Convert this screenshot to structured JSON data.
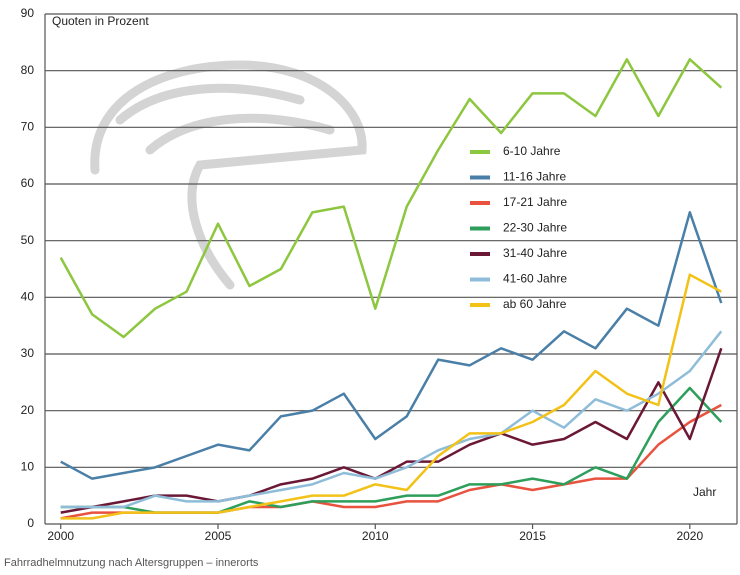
{
  "chart_data": {
    "type": "line",
    "annotation": "Quoten in Prozent",
    "x_label": "Jahr",
    "caption": "Fahrradhelmnutzung nach Altersgruppen – innerorts",
    "x": [
      2000,
      2001,
      2002,
      2003,
      2004,
      2005,
      2006,
      2007,
      2008,
      2009,
      2010,
      2011,
      2012,
      2013,
      2014,
      2015,
      2016,
      2017,
      2018,
      2019,
      2020,
      2021
    ],
    "series": [
      {
        "name": "6-10 Jahre",
        "color": "#8dc63f",
        "values": [
          47,
          37,
          33,
          38,
          41,
          53,
          42,
          45,
          55,
          56,
          38,
          56,
          66,
          75,
          69,
          76,
          76,
          72,
          82,
          72,
          82,
          77
        ]
      },
      {
        "name": "11-16 Jahre",
        "color": "#4a7fa7",
        "values": [
          11,
          8,
          9,
          10,
          12,
          14,
          13,
          19,
          20,
          23,
          15,
          19,
          29,
          28,
          31,
          29,
          34,
          31,
          38,
          35,
          55,
          39
        ]
      },
      {
        "name": "17-21 Jahre",
        "color": "#e8523f",
        "values": [
          1,
          2,
          2,
          2,
          2,
          2,
          3,
          3,
          4,
          3,
          3,
          4,
          4,
          6,
          7,
          6,
          7,
          8,
          8,
          14,
          18,
          21
        ]
      },
      {
        "name": "22-30 Jahre",
        "color": "#2e9e5b",
        "values": [
          3,
          3,
          3,
          2,
          2,
          2,
          4,
          3,
          4,
          4,
          4,
          5,
          5,
          7,
          7,
          8,
          7,
          10,
          8,
          18,
          24,
          18
        ]
      },
      {
        "name": "31-40 Jahre",
        "color": "#6b1836",
        "values": [
          2,
          3,
          4,
          5,
          5,
          4,
          5,
          7,
          8,
          10,
          8,
          11,
          11,
          14,
          16,
          14,
          15,
          18,
          15,
          25,
          15,
          31
        ]
      },
      {
        "name": "41-60 Jahre",
        "color": "#8fbdd9",
        "values": [
          3,
          3,
          3,
          5,
          4,
          4,
          5,
          6,
          7,
          9,
          8,
          10,
          13,
          15,
          16,
          20,
          17,
          22,
          20,
          23,
          27,
          34
        ]
      },
      {
        "name": "ab 60 Jahre",
        "color": "#f2c218",
        "values": [
          1,
          1,
          2,
          2,
          2,
          2,
          3,
          4,
          5,
          5,
          7,
          6,
          12,
          16,
          16,
          18,
          21,
          27,
          23,
          21,
          44,
          41
        ]
      }
    ],
    "xlim": [
      1999.5,
      2021.5
    ],
    "xticks": [
      2000,
      2005,
      2010,
      2015,
      2020
    ],
    "ylim": [
      0,
      90
    ],
    "yticks": [
      0,
      10,
      20,
      30,
      40,
      50,
      60,
      70,
      80,
      90
    ],
    "grid": true,
    "legend": "center right"
  }
}
